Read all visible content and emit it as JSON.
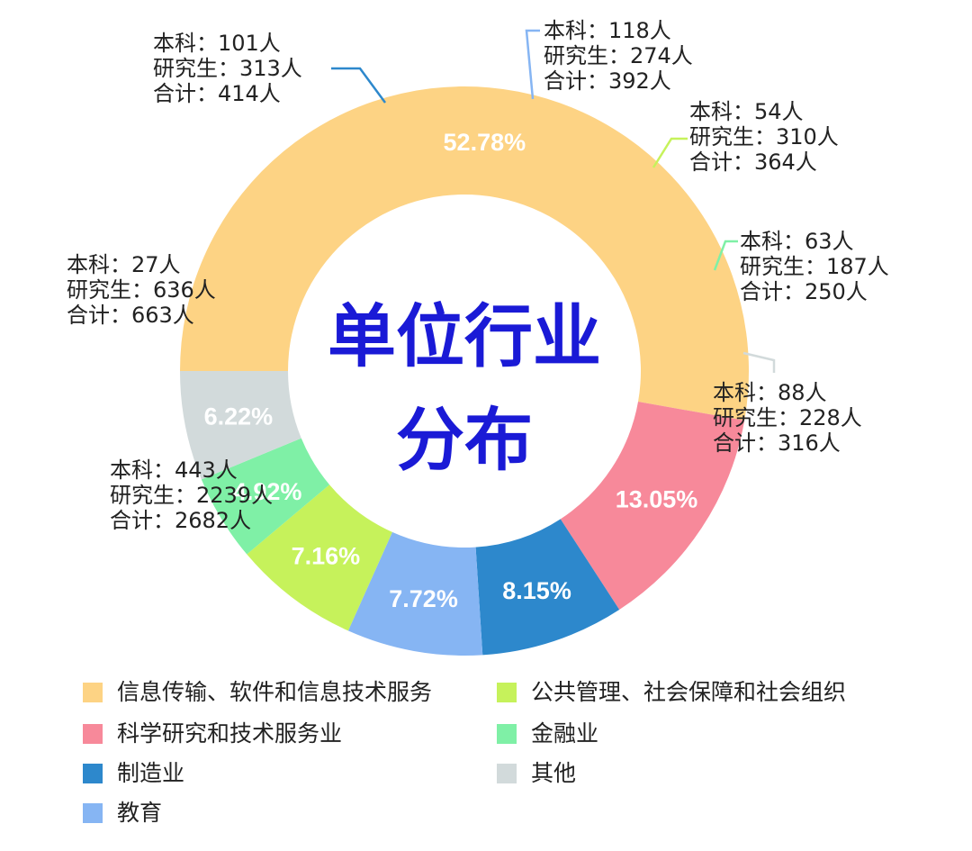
{
  "chart_data": {
    "type": "pie",
    "title": "单位行业分布",
    "title_lines": [
      "单位行业",
      "分布"
    ],
    "legend_position": "bottom",
    "slices": [
      {
        "name": "信息传输、软件和信息技术服务",
        "percent": 52.78,
        "percent_label": "52.78%",
        "color": "#fdd384",
        "label_color": "#ffffff",
        "annotation": [
          "本科：443人",
          "研究生：2239人",
          "合计：2682人"
        ]
      },
      {
        "name": "科学研究和技术服务业",
        "percent": 13.05,
        "percent_label": "13.05%",
        "color": "#f7899a",
        "label_color": "#ffffff",
        "annotation": [
          "本科：27人",
          "研究生：636人",
          "合计：663人"
        ]
      },
      {
        "name": "制造业",
        "percent": 8.15,
        "percent_label": "8.15%",
        "color": "#2d88cc",
        "label_color": "#ffffff",
        "annotation": [
          "本科：101人",
          "研究生：313人",
          "合计：414人"
        ]
      },
      {
        "name": "教育",
        "percent": 7.72,
        "percent_label": "7.72%",
        "color": "#86b5f3",
        "label_color": "#ffffff",
        "annotation": [
          "本科：118人",
          "研究生：274人",
          "合计：392人"
        ]
      },
      {
        "name": "公共管理、社会保障和社会组织",
        "percent": 7.16,
        "percent_label": "7.16%",
        "color": "#c6f25b",
        "label_color": "#ffffff",
        "annotation": [
          "本科：54人",
          "研究生：310人",
          "合计：364人"
        ]
      },
      {
        "name": "金融业",
        "percent": 4.92,
        "percent_label": "4.92%",
        "color": "#7ff0a6",
        "label_color": "#ffffff",
        "annotation": [
          "本科：63人",
          "研究生：187人",
          "合计：250人"
        ]
      },
      {
        "name": "其他",
        "percent": 6.22,
        "percent_label": "6.22%",
        "color": "#d2dadb",
        "label_color": "#ffffff",
        "annotation": [
          "本科：88人",
          "研究生：228人",
          "合计：316人"
        ]
      }
    ]
  }
}
